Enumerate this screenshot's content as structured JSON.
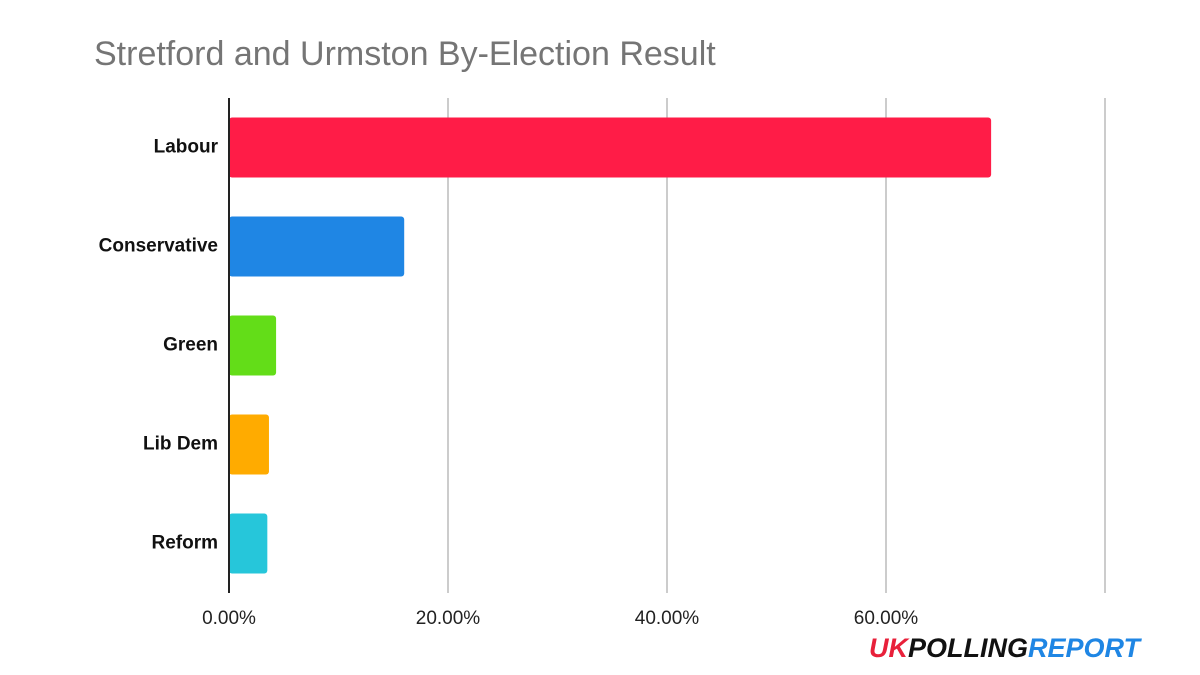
{
  "chart_data": {
    "type": "hbar",
    "title": "Stretford and Urmston By-Election Result",
    "categories": [
      "Labour",
      "Conservative",
      "Green",
      "Lib Dem",
      "Reform"
    ],
    "values": [
      69.6,
      16.0,
      4.3,
      3.65,
      3.5
    ],
    "colors": [
      "#ff1c47",
      "#1f86e4",
      "#63dd18",
      "#ffab00",
      "#26c6da"
    ],
    "xlim": [
      0,
      80
    ],
    "xticks": [
      {
        "value": 0,
        "label": "0.00%"
      },
      {
        "value": 20,
        "label": "20.00%"
      },
      {
        "value": 40,
        "label": "40.00%"
      },
      {
        "value": 60,
        "label": "60.00%"
      }
    ],
    "grid": true,
    "logo": [
      {
        "text": "UK",
        "color": "#e8203a"
      },
      {
        "text": "POLLING",
        "color": "#111111"
      },
      {
        "text": "REPORT",
        "color": "#1f86e4"
      }
    ]
  }
}
